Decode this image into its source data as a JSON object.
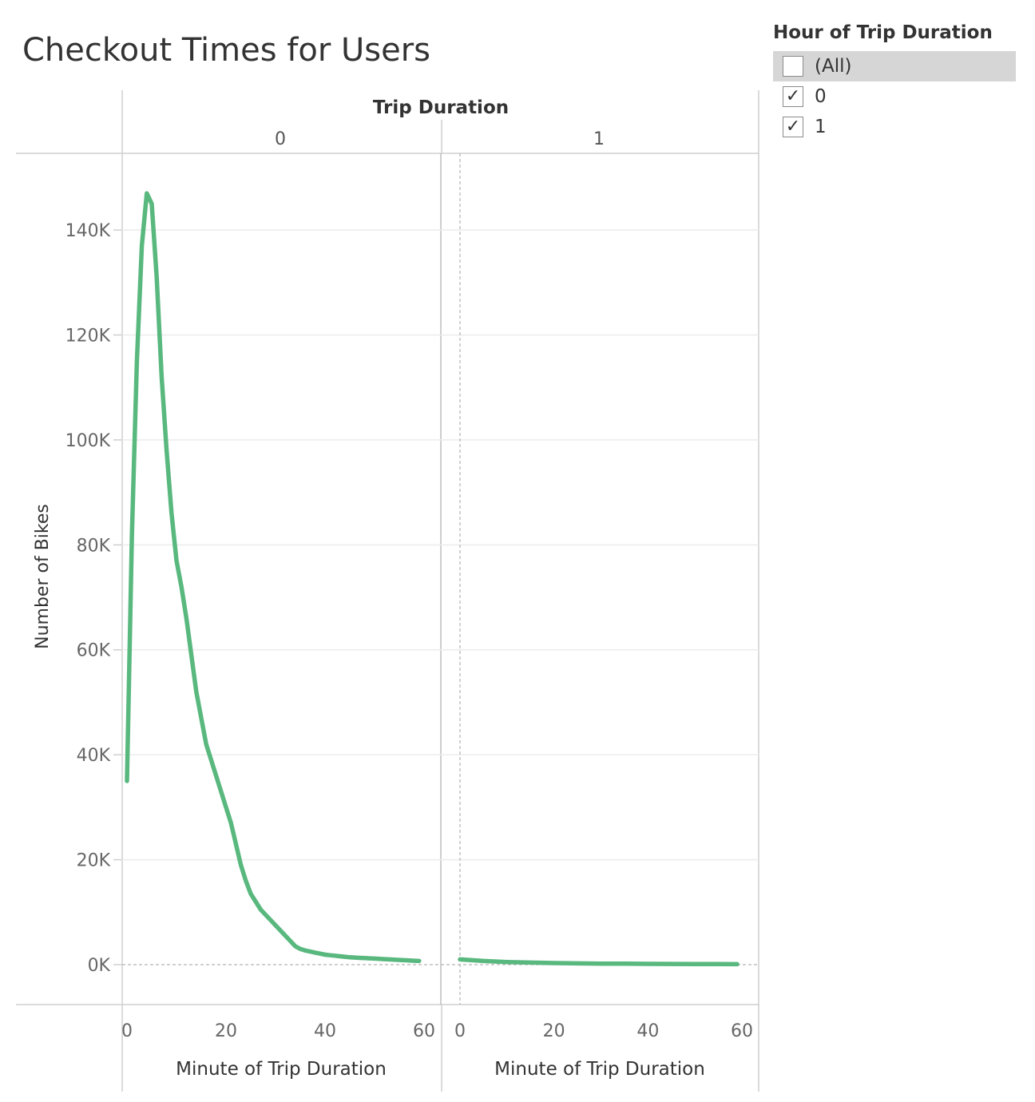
{
  "title": "Checkout Times for Users",
  "filter": {
    "title": "Hour of Trip Duration",
    "items": [
      {
        "label": "(All)",
        "checked": false
      },
      {
        "label": "0",
        "checked": true
      },
      {
        "label": "1",
        "checked": true
      }
    ]
  },
  "chart_data": {
    "type": "line",
    "title": "Checkout Times for Users",
    "column_header": "Trip Duration",
    "ylabel": "Number of Bikes",
    "xlabel": "Minute of Trip Duration",
    "ylim": [
      0,
      150000
    ],
    "yticks": [
      0,
      20000,
      40000,
      60000,
      80000,
      100000,
      120000,
      140000
    ],
    "ytick_labels": [
      "0K",
      "20K",
      "40K",
      "60K",
      "80K",
      "100K",
      "120K",
      "140K"
    ],
    "xticks": [
      0,
      20,
      40,
      60
    ],
    "line_color": "#59b87e",
    "grid": true,
    "panes": [
      {
        "label": "0",
        "x": [
          0,
          1,
          2,
          3,
          4,
          5,
          6,
          7,
          8,
          9,
          10,
          11,
          12,
          13,
          14,
          15,
          16,
          17,
          18,
          19,
          20,
          21,
          22,
          23,
          24,
          25,
          26,
          27,
          28,
          29,
          30,
          31,
          32,
          33,
          34,
          35,
          36,
          37,
          38,
          39,
          40,
          41,
          42,
          43,
          44,
          45,
          46,
          47,
          48,
          49,
          50,
          51,
          52,
          53,
          54,
          55,
          56,
          57,
          58,
          59
        ],
        "y": [
          35000,
          82000,
          115000,
          137000,
          147000,
          145000,
          131000,
          112000,
          98000,
          86000,
          77000,
          72000,
          66000,
          59000,
          52000,
          47000,
          42000,
          39000,
          36000,
          33000,
          30000,
          27000,
          23000,
          19000,
          16000,
          13500,
          12000,
          10500,
          9500,
          8500,
          7500,
          6500,
          5500,
          4500,
          3500,
          3000,
          2700,
          2500,
          2300,
          2100,
          1900,
          1800,
          1700,
          1600,
          1500,
          1400,
          1350,
          1300,
          1250,
          1200,
          1150,
          1100,
          1050,
          1000,
          950,
          900,
          850,
          800,
          750,
          700
        ],
        "x_range": [
          0,
          60
        ]
      },
      {
        "label": "1",
        "x": [
          0,
          5,
          10,
          15,
          20,
          25,
          30,
          35,
          40,
          45,
          50,
          55,
          59
        ],
        "y": [
          1000,
          700,
          500,
          400,
          300,
          250,
          200,
          180,
          150,
          130,
          110,
          100,
          90
        ],
        "x_range": [
          0,
          60
        ]
      }
    ]
  }
}
